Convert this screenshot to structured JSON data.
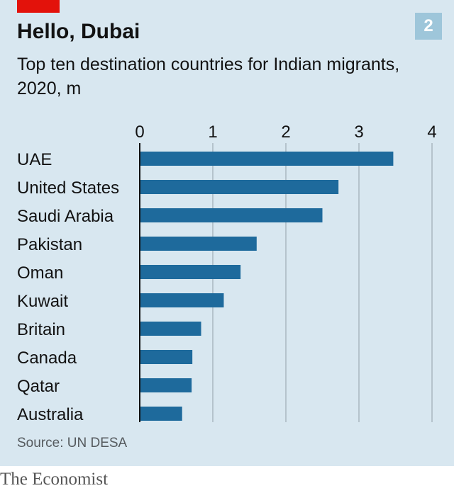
{
  "chart_data": {
    "type": "bar",
    "orientation": "horizontal",
    "title": "Hello, Dubai",
    "subtitle": "Top ten destination countries for Indian migrants, 2020, m",
    "categories": [
      "UAE",
      "United States",
      "Saudi Arabia",
      "Pakistan",
      "Oman",
      "Kuwait",
      "Britain",
      "Canada",
      "Qatar",
      "Australia"
    ],
    "values": [
      3.47,
      2.72,
      2.5,
      1.6,
      1.38,
      1.15,
      0.84,
      0.72,
      0.71,
      0.58
    ],
    "xlim": [
      0,
      4
    ],
    "xticks": [
      0,
      1,
      2,
      3,
      4
    ],
    "xlabel": "",
    "ylabel": "",
    "grid": true,
    "bar_color": "#1e6a9c"
  },
  "chart_number": "2",
  "source": "Source: UN DESA",
  "publisher": "The Economist",
  "colors": {
    "background": "#d8e7f0",
    "accent_red": "#e3120b",
    "number_badge": "#9ec6da"
  }
}
